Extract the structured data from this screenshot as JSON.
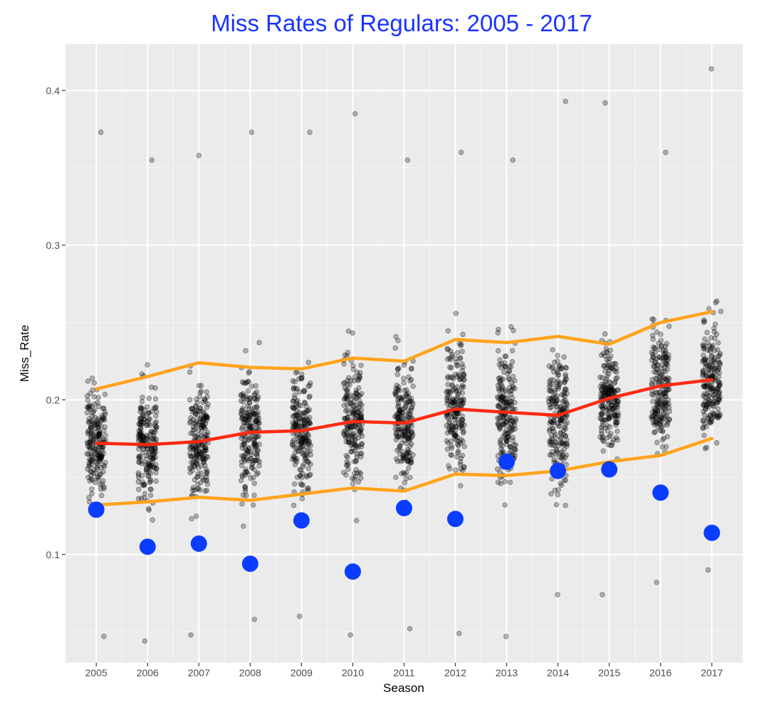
{
  "chart_data": {
    "type": "scatter",
    "title": "Miss Rates of Regulars:  2005 - 2017",
    "xlabel": "Season",
    "ylabel": "Miss_Rate",
    "x_ticks": [
      "2005",
      "2006",
      "2007",
      "2008",
      "2009",
      "2010",
      "2011",
      "2012",
      "2013",
      "2014",
      "2015",
      "2016",
      "2017"
    ],
    "y_ticks": [
      "0.1",
      "0.2",
      "0.3",
      "0.4"
    ],
    "xlim": [
      2004.4,
      2017.6
    ],
    "ylim": [
      0.03,
      0.43
    ],
    "grid": true,
    "background": "#ebebeb",
    "x": [
      2005,
      2006,
      2007,
      2008,
      2009,
      2010,
      2011,
      2012,
      2013,
      2014,
      2015,
      2016,
      2017
    ],
    "series": [
      {
        "role": "upper-quantile-line",
        "color": "#ffa31a",
        "values": [
          0.207,
          0.215,
          0.224,
          0.221,
          0.22,
          0.227,
          0.225,
          0.239,
          0.237,
          0.241,
          0.236,
          0.25,
          0.257
        ]
      },
      {
        "role": "median-line",
        "color": "#ff2a12",
        "values": [
          0.172,
          0.171,
          0.173,
          0.179,
          0.18,
          0.186,
          0.185,
          0.194,
          0.192,
          0.19,
          0.201,
          0.209,
          0.213
        ]
      },
      {
        "role": "lower-quantile-line",
        "color": "#ffa31a",
        "values": [
          0.132,
          0.134,
          0.137,
          0.135,
          0.139,
          0.143,
          0.141,
          0.152,
          0.151,
          0.154,
          0.16,
          0.164,
          0.175
        ]
      },
      {
        "role": "highlight-points",
        "color": "#0a3dff",
        "values": [
          0.129,
          0.105,
          0.107,
          0.094,
          0.122,
          0.089,
          0.13,
          0.123,
          0.16,
          0.154,
          0.155,
          0.14,
          0.114
        ]
      }
    ],
    "jitter_points": {
      "color": "#000000",
      "per_season": 200,
      "range_by_season": {
        "2005": [
          0.047,
          0.373
        ],
        "2006": [
          0.044,
          0.355
        ],
        "2007": [
          0.048,
          0.358
        ],
        "2008": [
          0.058,
          0.373
        ],
        "2009": [
          0.06,
          0.373
        ],
        "2010": [
          0.048,
          0.385
        ],
        "2011": [
          0.052,
          0.355
        ],
        "2012": [
          0.049,
          0.36
        ],
        "2013": [
          0.047,
          0.355
        ],
        "2014": [
          0.074,
          0.393
        ],
        "2015": [
          0.074,
          0.392
        ],
        "2016": [
          0.082,
          0.36
        ],
        "2017": [
          0.09,
          0.414
        ]
      }
    }
  }
}
